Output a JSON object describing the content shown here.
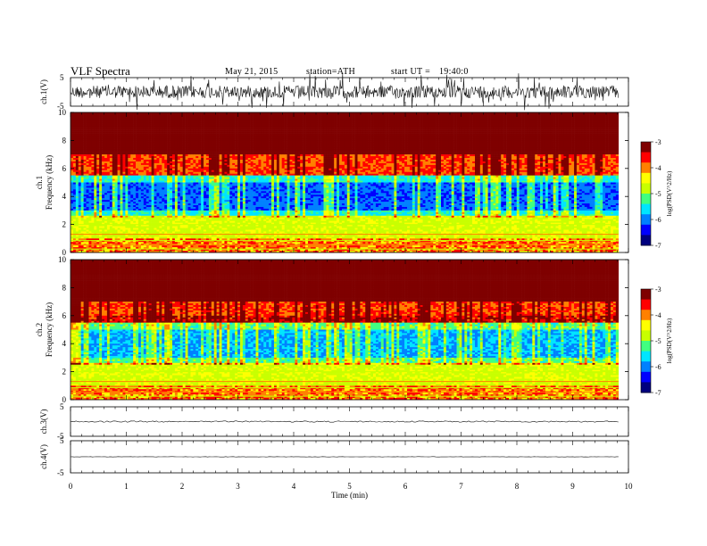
{
  "header": {
    "title": "VLF Spectra",
    "date": "May 21, 2015",
    "station": "station=ATH",
    "start": "start UT =",
    "start_time": "19:40:0"
  },
  "chart_data": [
    {
      "type": "line",
      "title": "",
      "ylabel": "ch.1(V)",
      "yticks": [
        "5",
        "-5"
      ],
      "ylim": [
        -5,
        5
      ],
      "xlim": [
        0,
        10
      ],
      "series": [
        {
          "values_description_free": true
        }
      ]
    },
    {
      "type": "heatmap",
      "ylabel": "Frequency (kHz)",
      "channel_label": "ch.1",
      "yticks": [
        "0",
        "2",
        "4",
        "6",
        "8",
        "10"
      ],
      "ylim": [
        0,
        10
      ],
      "xlim": [
        0,
        10
      ],
      "colorbar": {
        "label": "log(PSD(V^2/Hz)",
        "ticks": [
          "-3",
          "-4",
          "-5",
          "-6",
          "-7"
        ],
        "range": [
          -7,
          -3
        ]
      }
    },
    {
      "type": "heatmap",
      "ylabel": "Frequency (kHz)",
      "channel_label": "ch.2",
      "yticks": [
        "0",
        "2",
        "4",
        "6",
        "8",
        "10"
      ],
      "ylim": [
        0,
        10
      ],
      "xlim": [
        0,
        10
      ],
      "colorbar": {
        "label": "log(PSD(V^2/Hz)",
        "ticks": [
          "-3",
          "-4",
          "-5",
          "-6",
          "-7"
        ],
        "range": [
          -7,
          -3
        ]
      }
    },
    {
      "type": "line",
      "ylabel": "ch.3(V)",
      "yticks": [
        "5",
        "-5"
      ],
      "ylim": [
        -5,
        5
      ],
      "xlim": [
        0,
        10
      ]
    },
    {
      "type": "line",
      "ylabel": "ch.4(V)",
      "yticks": [
        "5",
        "-5"
      ],
      "ylim": [
        -5,
        5
      ],
      "xlim": [
        0,
        10
      ],
      "xlabel": "Time (min)",
      "xticks": [
        "0",
        "1",
        "2",
        "3",
        "4",
        "5",
        "6",
        "7",
        "8",
        "9",
        "10"
      ]
    }
  ],
  "colors": {
    "colormap": [
      "#00007f",
      "#0000ff",
      "#0080ff",
      "#00e5ff",
      "#40ff80",
      "#c8ff00",
      "#ffff00",
      "#ff8000",
      "#ff0000",
      "#7f0000"
    ]
  }
}
